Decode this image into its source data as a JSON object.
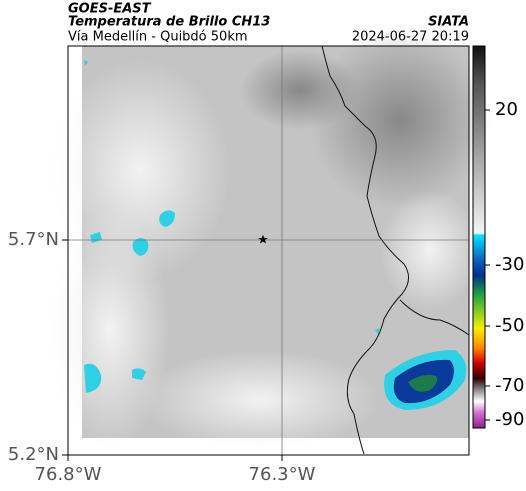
{
  "header": {
    "title": "GOES-EAST",
    "subtitle": "Temperatura de Brillo CH13",
    "source": "SIATA",
    "route": "Vía Medellín - Quibdó 50km",
    "datetime": "2024-06-27 20:19"
  },
  "map": {
    "yticks": [
      "5.7°N",
      "5.2°N"
    ],
    "xticks": [
      "76.8°W",
      "76.3°W"
    ]
  },
  "colorbar": {
    "ticks": [
      20,
      -30,
      -50,
      -70,
      -90
    ]
  }
}
